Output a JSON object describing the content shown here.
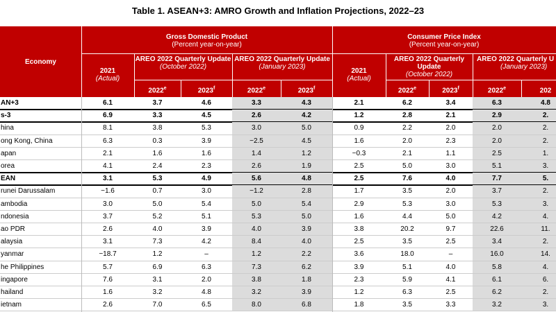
{
  "title": "Table 1. ASEAN+3: AMRO Growth and Inflation Projections, 2022–23",
  "header": {
    "economy": "Economy",
    "gdp": {
      "title": "Gross Domestic Product",
      "unit": "(Percent year-on-year)",
      "actual": {
        "year": "2021",
        "note": "(Actual)"
      },
      "oct": {
        "title": "AREO 2022 Quarterly Update",
        "note": "(October 2022)"
      },
      "jan": {
        "title": "AREO 2022 Quarterly Update",
        "note": "(January 2023)"
      }
    },
    "cpi": {
      "title": "Consumer Price Index",
      "unit": "(Percent year-on-year)",
      "actual": {
        "year": "2021",
        "note": "(Actual)"
      },
      "oct": {
        "title": "AREO 2022 Quarterly Update",
        "note": "(October 2022)"
      },
      "jan": {
        "title": "AREO 2022 Quarterly U",
        "note": "(January 2023)"
      }
    },
    "years": [
      {
        "year": "2022",
        "sup": "e"
      },
      {
        "year": "2023",
        "sup": "f"
      },
      {
        "year": "2022",
        "sup": "e"
      },
      {
        "year": "2023",
        "sup": "f"
      },
      {
        "year": "2022",
        "sup": "e"
      },
      {
        "year": "2023",
        "sup": "f"
      },
      {
        "year": "2022",
        "sup": "e"
      },
      {
        "year": "202",
        "sup": ""
      }
    ]
  },
  "table": {
    "rows": [
      [
        "AN+3",
        "6.1",
        "3.7",
        "4.6",
        "3.3",
        "4.3",
        "2.1",
        "6.2",
        "3.4",
        "6.3",
        "4.8"
      ],
      [
        "s-3",
        "6.9",
        "3.3",
        "4.5",
        "2.6",
        "4.2",
        "1.2",
        "2.8",
        "2.1",
        "2.9",
        "2."
      ],
      [
        "hina",
        "8.1",
        "3.8",
        "5.3",
        "3.0",
        "5.0",
        "0.9",
        "2.2",
        "2.0",
        "2.0",
        "2."
      ],
      [
        "ong Kong, China",
        "6.3",
        "0.3",
        "3.9",
        "−2.5",
        "4.5",
        "1.6",
        "2.0",
        "2.3",
        "2.0",
        "2."
      ],
      [
        "apan",
        "2.1",
        "1.6",
        "1.6",
        "1.4",
        "1.2",
        "−0.3",
        "2.1",
        "1.1",
        "2.5",
        "1."
      ],
      [
        "orea",
        "4.1",
        "2.4",
        "2.3",
        "2.6",
        "1.9",
        "2.5",
        "5.0",
        "3.0",
        "5.1",
        "3."
      ],
      [
        "EAN",
        "3.1",
        "5.3",
        "4.9",
        "5.6",
        "4.8",
        "2.5",
        "7.6",
        "4.0",
        "7.7",
        "5."
      ],
      [
        "runei Darussalam",
        "−1.6",
        "0.7",
        "3.0",
        "−1.2",
        "2.8",
        "1.7",
        "3.5",
        "2.0",
        "3.7",
        "2."
      ],
      [
        "ambodia",
        "3.0",
        "5.0",
        "5.4",
        "5.0",
        "5.4",
        "2.9",
        "5.3",
        "3.0",
        "5.3",
        "3."
      ],
      [
        "ndonesia",
        "3.7",
        "5.2",
        "5.1",
        "5.3",
        "5.0",
        "1.6",
        "4.4",
        "5.0",
        "4.2",
        "4."
      ],
      [
        "ao PDR",
        "2.6",
        "4.0",
        "3.9",
        "4.0",
        "3.9",
        "3.8",
        "20.2",
        "9.7",
        "22.6",
        "11."
      ],
      [
        "alaysia",
        "3.1",
        "7.3",
        "4.2",
        "8.4",
        "4.0",
        "2.5",
        "3.5",
        "2.5",
        "3.4",
        "2."
      ],
      [
        "yanmar",
        "−18.7",
        "1.2",
        "–",
        "1.2",
        "2.2",
        "3.6",
        "18.0",
        "–",
        "16.0",
        "14."
      ],
      [
        "he Philippines",
        "5.7",
        "6.9",
        "6.3",
        "7.3",
        "6.2",
        "3.9",
        "5.1",
        "4.0",
        "5.8",
        "4."
      ],
      [
        "ingapore",
        "7.6",
        "3.1",
        "2.0",
        "3.8",
        "1.8",
        "2.3",
        "5.9",
        "4.1",
        "6.1",
        "6."
      ],
      [
        "hailand",
        "1.6",
        "3.2",
        "4.8",
        "3.2",
        "3.9",
        "1.2",
        "6.3",
        "2.5",
        "6.2",
        "2."
      ],
      [
        "ietnam",
        "2.6",
        "7.0",
        "6.5",
        "8.0",
        "6.8",
        "1.8",
        "3.5",
        "3.3",
        "3.2",
        "3."
      ]
    ]
  }
}
